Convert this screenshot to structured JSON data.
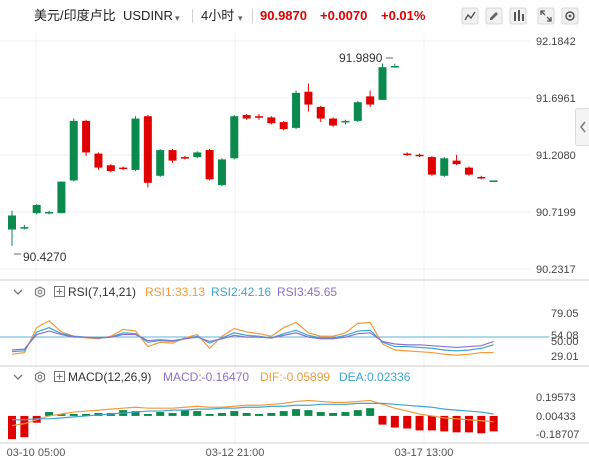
{
  "header": {
    "symbol_name": "美元/印度卢比",
    "symbol_code": "USDINR",
    "interval": "4小时",
    "price": "90.9870",
    "change": "+0.0070",
    "change_pct": "+0.01%"
  },
  "header_icons": [
    "chart-type-icon",
    "draw-icon",
    "compare-icon",
    "fullscreen-icon",
    "settings-icon"
  ],
  "colors": {
    "up": "#0a8a4d",
    "down": "#e00000",
    "rsi1": "#f39a3c",
    "rsi2": "#3fa5d4",
    "rsi3": "#8c71cf",
    "macd": "#8c71cf",
    "dif": "#f39a3c",
    "dea": "#3fa5d4"
  },
  "rsi_panel": {
    "name": "RSI(7,14,21)",
    "rsi1": "RSI1:33.13",
    "rsi2": "RSI2:42.16",
    "rsi3": "RSI3:45.65",
    "ticks": [
      "79.05",
      "54.08",
      "50.00",
      "29.01"
    ]
  },
  "macd_panel": {
    "name": "MACD(12,26,9)",
    "macd": "MACD:-0.16470",
    "dif": "DIF:-0.05899",
    "dea": "DEA:0.02336",
    "ticks": [
      "0.19573",
      "0.00433",
      "-0.18707"
    ]
  },
  "chart_data": {
    "type": "candlestick",
    "y_ticks": [
      "92.1842",
      "91.6961",
      "91.2080",
      "90.7199",
      "90.2317"
    ],
    "ylim": [
      90.2317,
      92.1842
    ],
    "annotations": {
      "high": "91.9890",
      "low": "90.4270"
    },
    "x_tick_labels": [
      "03-10 05:00",
      "03-12 21:00",
      "03-17 13:00"
    ],
    "candles": [
      {
        "o": 90.57,
        "h": 90.73,
        "l": 90.43,
        "c": 90.69
      },
      {
        "o": 90.59,
        "h": 90.61,
        "l": 90.57,
        "c": 90.59
      },
      {
        "o": 90.71,
        "h": 90.79,
        "l": 90.7,
        "c": 90.78
      },
      {
        "o": 90.72,
        "h": 90.73,
        "l": 90.7,
        "c": 90.72
      },
      {
        "o": 90.71,
        "h": 90.98,
        "l": 90.71,
        "c": 90.98
      },
      {
        "o": 90.99,
        "h": 91.52,
        "l": 90.98,
        "c": 91.5
      },
      {
        "o": 91.5,
        "h": 91.51,
        "l": 91.2,
        "c": 91.23
      },
      {
        "o": 91.22,
        "h": 91.23,
        "l": 91.08,
        "c": 91.1
      },
      {
        "o": 91.12,
        "h": 91.13,
        "l": 91.06,
        "c": 91.07
      },
      {
        "o": 91.1,
        "h": 91.11,
        "l": 91.08,
        "c": 91.09
      },
      {
        "o": 91.08,
        "h": 91.54,
        "l": 91.07,
        "c": 91.52
      },
      {
        "o": 91.54,
        "h": 91.55,
        "l": 90.93,
        "c": 90.97
      },
      {
        "o": 91.03,
        "h": 91.26,
        "l": 91.02,
        "c": 91.25
      },
      {
        "o": 91.25,
        "h": 91.26,
        "l": 91.14,
        "c": 91.16
      },
      {
        "o": 91.19,
        "h": 91.2,
        "l": 91.17,
        "c": 91.18
      },
      {
        "o": 91.19,
        "h": 91.24,
        "l": 91.18,
        "c": 91.23
      },
      {
        "o": 91.25,
        "h": 91.26,
        "l": 90.99,
        "c": 91.0
      },
      {
        "o": 90.95,
        "h": 91.18,
        "l": 90.94,
        "c": 91.17
      },
      {
        "o": 91.18,
        "h": 91.55,
        "l": 91.17,
        "c": 91.54
      },
      {
        "o": 91.55,
        "h": 91.56,
        "l": 91.51,
        "c": 91.52
      },
      {
        "o": 91.54,
        "h": 91.56,
        "l": 91.51,
        "c": 91.53
      },
      {
        "o": 91.53,
        "h": 91.54,
        "l": 91.47,
        "c": 91.48
      },
      {
        "o": 91.49,
        "h": 91.5,
        "l": 91.42,
        "c": 91.43
      },
      {
        "o": 91.44,
        "h": 91.76,
        "l": 91.43,
        "c": 91.74
      },
      {
        "o": 91.75,
        "h": 91.82,
        "l": 91.58,
        "c": 91.64
      },
      {
        "o": 91.62,
        "h": 91.63,
        "l": 91.49,
        "c": 91.52
      },
      {
        "o": 91.52,
        "h": 91.53,
        "l": 91.45,
        "c": 91.46
      },
      {
        "o": 91.49,
        "h": 91.51,
        "l": 91.47,
        "c": 91.5
      },
      {
        "o": 91.5,
        "h": 91.67,
        "l": 91.49,
        "c": 91.66
      },
      {
        "o": 91.71,
        "h": 91.76,
        "l": 91.62,
        "c": 91.64
      },
      {
        "o": 91.68,
        "h": 91.99,
        "l": 91.68,
        "c": 91.96
      },
      {
        "o": 91.97,
        "h": 91.99,
        "l": 91.96,
        "c": 91.97
      },
      {
        "o": 91.22,
        "h": 91.23,
        "l": 91.2,
        "c": 91.21
      },
      {
        "o": 91.21,
        "h": 91.22,
        "l": 91.19,
        "c": 91.2
      },
      {
        "o": 91.19,
        "h": 91.2,
        "l": 91.03,
        "c": 91.04
      },
      {
        "o": 91.03,
        "h": 91.19,
        "l": 91.02,
        "c": 91.18
      },
      {
        "o": 91.16,
        "h": 91.21,
        "l": 91.12,
        "c": 91.13
      },
      {
        "o": 91.1,
        "h": 91.11,
        "l": 91.03,
        "c": 91.04
      },
      {
        "o": 91.02,
        "h": 91.03,
        "l": 91.0,
        "c": 91.01
      },
      {
        "o": 90.99,
        "h": 90.99,
        "l": 90.98,
        "c": 90.99
      }
    ],
    "rsi": {
      "rsi1": [
        31,
        33,
        62,
        70,
        57,
        52,
        50,
        49,
        52,
        60,
        58,
        40,
        45,
        44,
        50,
        54,
        38,
        52,
        61,
        57,
        55,
        52,
        62,
        68,
        56,
        52,
        52,
        56,
        67,
        68,
        43,
        36,
        35,
        34,
        33,
        31,
        30,
        31,
        33,
        33
      ],
      "rsi2": [
        34,
        35,
        57,
        62,
        55,
        52,
        51,
        50,
        51,
        56,
        55,
        45,
        47,
        46,
        49,
        52,
        44,
        50,
        56,
        53,
        52,
        50,
        55,
        59,
        53,
        50,
        50,
        53,
        58,
        59,
        45,
        40,
        40,
        39,
        38,
        36,
        35,
        36,
        38,
        42
      ],
      "rsi3": [
        36,
        37,
        54,
        58,
        54,
        51,
        51,
        50,
        51,
        54,
        54,
        47,
        48,
        47,
        49,
        51,
        46,
        49,
        53,
        51,
        51,
        50,
        53,
        56,
        51,
        49,
        49,
        51,
        55,
        56,
        46,
        43,
        42,
        42,
        41,
        40,
        39,
        40,
        41,
        46
      ]
    },
    "macd": {
      "hist": [
        -0.24,
        -0.22,
        -0.07,
        0.04,
        0.02,
        0.02,
        0.02,
        0.03,
        0.03,
        0.06,
        0.05,
        0.02,
        0.04,
        0.03,
        0.06,
        0.05,
        0.02,
        0.03,
        0.05,
        0.03,
        0.02,
        0.03,
        0.05,
        0.07,
        0.06,
        0.04,
        0.03,
        0.04,
        0.06,
        0.08,
        -0.09,
        -0.12,
        -0.13,
        -0.15,
        -0.15,
        -0.16,
        -0.17,
        -0.17,
        -0.18,
        -0.16
      ],
      "dif": [
        -0.1,
        -0.08,
        -0.04,
        0.0,
        0.02,
        0.04,
        0.05,
        0.06,
        0.07,
        0.08,
        0.09,
        0.08,
        0.08,
        0.08,
        0.09,
        0.1,
        0.09,
        0.09,
        0.1,
        0.11,
        0.11,
        0.12,
        0.13,
        0.15,
        0.16,
        0.15,
        0.14,
        0.14,
        0.15,
        0.16,
        0.12,
        0.08,
        0.05,
        0.02,
        0.0,
        -0.02,
        -0.03,
        -0.04,
        -0.05,
        -0.06
      ],
      "dea": [
        -0.04,
        -0.04,
        -0.03,
        -0.03,
        -0.02,
        -0.01,
        0.0,
        0.01,
        0.02,
        0.03,
        0.04,
        0.05,
        0.05,
        0.06,
        0.06,
        0.07,
        0.07,
        0.08,
        0.08,
        0.09,
        0.09,
        0.1,
        0.1,
        0.11,
        0.11,
        0.12,
        0.12,
        0.12,
        0.13,
        0.13,
        0.13,
        0.12,
        0.11,
        0.1,
        0.09,
        0.07,
        0.06,
        0.05,
        0.04,
        0.02
      ]
    }
  }
}
